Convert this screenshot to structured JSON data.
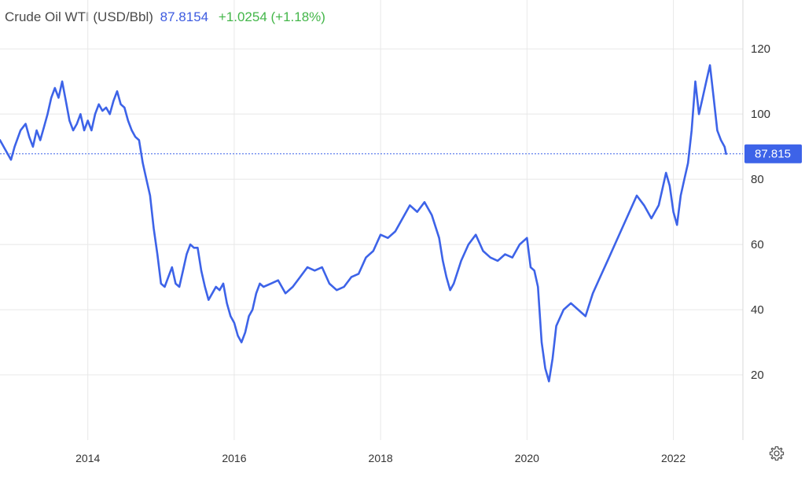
{
  "header": {
    "name": "Crude Oil WTI (USD/Bbl)",
    "price": "87.8154",
    "change": "+1.0254 (+1.18%)"
  },
  "colors": {
    "line": "#3d63e8",
    "price_text": "#3d5be0",
    "change_text": "#43b649",
    "grid": "#e8e8e8",
    "label_bg": "#3d63e8"
  },
  "icons": {
    "settings": "gear-icon"
  },
  "chart_data": {
    "type": "line",
    "title": "Crude Oil WTI (USD/Bbl)",
    "xlabel": "",
    "ylabel": "",
    "xlim": [
      2012.8,
      2022.95
    ],
    "ylim": [
      0,
      135
    ],
    "yticks": [
      20,
      40,
      60,
      80,
      100,
      120
    ],
    "xticks": [
      2014,
      2016,
      2018,
      2020,
      2022
    ],
    "grid": true,
    "legend": "none",
    "current_value": 87.815,
    "current_label": "87.815",
    "series": [
      {
        "x": [
          2012.8,
          2012.9,
          2012.95,
          2013.0,
          2013.08,
          2013.15,
          2013.2,
          2013.25,
          2013.3,
          2013.35,
          2013.4,
          2013.45,
          2013.5,
          2013.55,
          2013.6,
          2013.65,
          2013.7,
          2013.75,
          2013.8,
          2013.85,
          2013.9,
          2013.95,
          2014.0,
          2014.05,
          2014.1,
          2014.15,
          2014.2,
          2014.25,
          2014.3,
          2014.35,
          2014.4,
          2014.45,
          2014.5,
          2014.55,
          2014.6,
          2014.65,
          2014.7,
          2014.75,
          2014.8,
          2014.85,
          2014.9,
          2014.95,
          2015.0,
          2015.05,
          2015.1,
          2015.15,
          2015.2,
          2015.25,
          2015.3,
          2015.35,
          2015.4,
          2015.45,
          2015.5,
          2015.55,
          2015.6,
          2015.65,
          2015.7,
          2015.75,
          2015.8,
          2015.85,
          2015.9,
          2015.95,
          2016.0,
          2016.05,
          2016.1,
          2016.15,
          2016.2,
          2016.25,
          2016.3,
          2016.35,
          2016.4,
          2016.5,
          2016.6,
          2016.7,
          2016.8,
          2016.9,
          2017.0,
          2017.1,
          2017.2,
          2017.3,
          2017.4,
          2017.5,
          2017.6,
          2017.7,
          2017.8,
          2017.9,
          2018.0,
          2018.1,
          2018.2,
          2018.3,
          2018.4,
          2018.5,
          2018.6,
          2018.7,
          2018.8,
          2018.85,
          2018.9,
          2018.95,
          2019.0,
          2019.1,
          2019.2,
          2019.3,
          2019.4,
          2019.5,
          2019.6,
          2019.7,
          2019.8,
          2019.9,
          2020.0,
          2020.05,
          2020.1,
          2020.15,
          2020.2,
          2020.25,
          2020.3,
          2020.35,
          2020.4,
          2020.5,
          2020.6,
          2020.7,
          2020.8,
          2020.9,
          2021.0,
          2021.1,
          2021.2,
          2021.3,
          2021.4,
          2021.5,
          2021.6,
          2021.7,
          2021.8,
          2021.85,
          2021.9,
          2021.95,
          2022.0,
          2022.05,
          2022.1,
          2022.15,
          2022.2,
          2022.25,
          2022.3,
          2022.35,
          2022.4,
          2022.45,
          2022.5,
          2022.55,
          2022.6,
          2022.65,
          2022.7,
          2022.72
        ],
        "values": [
          92,
          88,
          86,
          90,
          95,
          97,
          93,
          90,
          95,
          92,
          96,
          100,
          105,
          108,
          105,
          110,
          104,
          98,
          95,
          97,
          100,
          95,
          98,
          95,
          100,
          103,
          101,
          102,
          100,
          104,
          107,
          103,
          102,
          98,
          95,
          93,
          92,
          85,
          80,
          75,
          65,
          57,
          48,
          47,
          50,
          53,
          48,
          47,
          52,
          57,
          60,
          59,
          59,
          52,
          47,
          43,
          45,
          47,
          46,
          48,
          42,
          38,
          36,
          32,
          30,
          33,
          38,
          40,
          45,
          48,
          47,
          48,
          49,
          45,
          47,
          50,
          53,
          52,
          53,
          48,
          46,
          47,
          50,
          51,
          56,
          58,
          63,
          62,
          64,
          68,
          72,
          70,
          73,
          69,
          62,
          55,
          50,
          46,
          48,
          55,
          60,
          63,
          58,
          56,
          55,
          57,
          56,
          60,
          62,
          53,
          52,
          47,
          30,
          22,
          18,
          25,
          35,
          40,
          42,
          40,
          38,
          45,
          50,
          55,
          60,
          65,
          70,
          75,
          72,
          68,
          72,
          77,
          82,
          78,
          70,
          66,
          75,
          80,
          85,
          95,
          110,
          100,
          105,
          110,
          115,
          105,
          95,
          92,
          90,
          87.8
        ]
      }
    ]
  }
}
